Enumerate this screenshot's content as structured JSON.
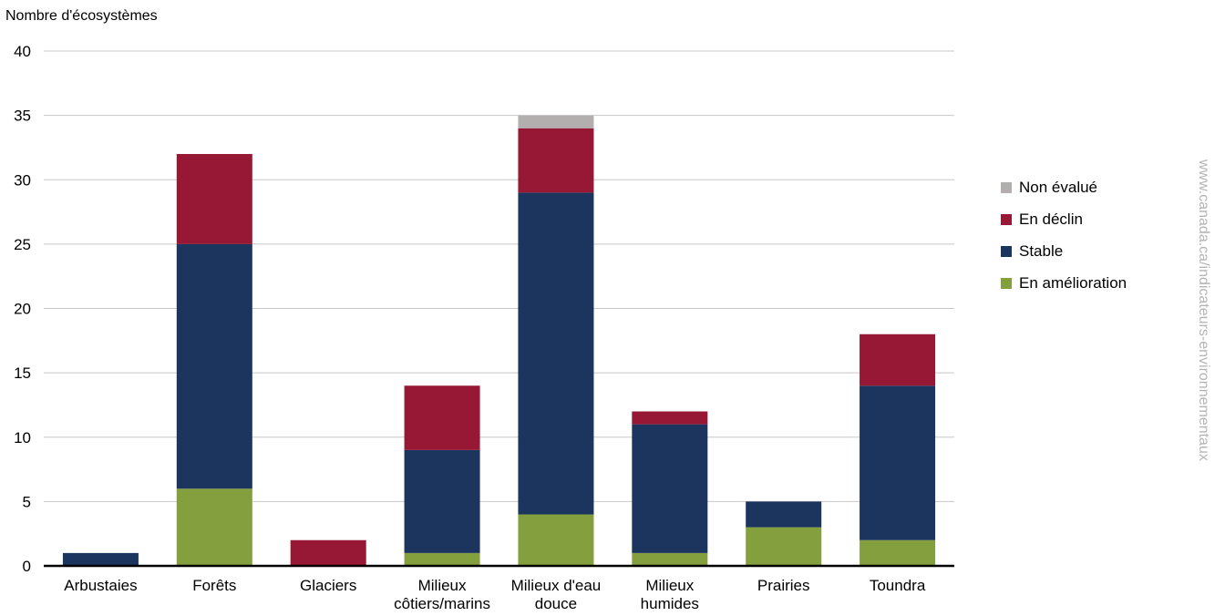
{
  "chart_data": {
    "type": "bar",
    "stacked": true,
    "ylabel": "Nombre d'écosystèmes",
    "ylim": [
      0,
      40
    ],
    "yticks": [
      0,
      5,
      10,
      15,
      20,
      25,
      30,
      35,
      40
    ],
    "grid": true,
    "legend_position": "right",
    "categories": [
      [
        "Arbustaies"
      ],
      [
        "Forêts"
      ],
      [
        "Glaciers"
      ],
      [
        "Milieux",
        "côtiers/marins"
      ],
      [
        "Milieux d'eau",
        "douce"
      ],
      [
        "Milieux",
        "humides"
      ],
      [
        "Prairies"
      ],
      [
        "Toundra"
      ]
    ],
    "series": [
      {
        "name": "En amélioration",
        "color": "#84a03e",
        "values": [
          0,
          6,
          0,
          1,
          4,
          1,
          3,
          2
        ]
      },
      {
        "name": "Stable",
        "color": "#1c355e",
        "values": [
          1,
          19,
          0,
          8,
          25,
          10,
          2,
          12
        ]
      },
      {
        "name": "En déclin",
        "color": "#961834",
        "values": [
          0,
          7,
          2,
          5,
          5,
          1,
          0,
          4
        ]
      },
      {
        "name": "Non évalué",
        "color": "#b3afaf",
        "values": [
          0,
          0,
          0,
          0,
          1,
          0,
          0,
          0
        ]
      }
    ]
  },
  "legend": {
    "items": [
      {
        "label": "Non évalué",
        "color": "#b3afaf"
      },
      {
        "label": "En déclin",
        "color": "#961834"
      },
      {
        "label": "Stable",
        "color": "#1c355e"
      },
      {
        "label": "En amélioration",
        "color": "#84a03e"
      }
    ]
  },
  "source_text": "www.canada.ca/indicateurs-environnementaux"
}
